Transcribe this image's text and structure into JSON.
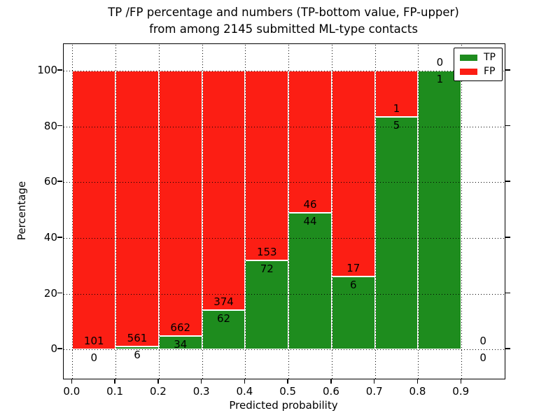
{
  "title": {
    "line1": "TP /FP percentage and numbers (TP-bottom value, FP-upper)",
    "line2": "from among 2145 submitted ML-type contacts"
  },
  "chart_data": {
    "type": "bar",
    "stacked": true,
    "orientation": "vertical",
    "title": "TP /FP percentage and numbers (TP-bottom value, FP-upper) from among 2145 submitted ML-type contacts",
    "xlabel": "Predicted probability",
    "ylabel": "Percentage",
    "xlim": [
      -0.02,
      1.0
    ],
    "ylim": [
      -10.5,
      109.5
    ],
    "xticks": [
      "0.0",
      "0.1",
      "0.2",
      "0.3",
      "0.4",
      "0.5",
      "0.6",
      "0.7",
      "0.8",
      "0.9"
    ],
    "yticks": [
      0,
      20,
      40,
      60,
      80,
      100
    ],
    "grid": "dotted, both axes",
    "legend_position": "upper right",
    "total_submitted": 2145,
    "series_note": "Each 0.1-wide bin is a bar normalized to 100%: TP (green) on bottom, FP (red) on top. Labels are raw counts: FP count just above the TP/FP boundary, TP count just below it. The 0.9-1.0 bin has no contacts so no bar is drawn.",
    "legend": [
      {
        "label": "TP",
        "color": "#1e8c1e"
      },
      {
        "label": "FP",
        "color": "#fc1e14"
      }
    ],
    "bins": [
      {
        "x0": 0.0,
        "x1": 0.1,
        "tp": 0,
        "fp": 101,
        "tp_pct": 0.0
      },
      {
        "x0": 0.1,
        "x1": 0.2,
        "tp": 6,
        "fp": 561,
        "tp_pct": 1.06
      },
      {
        "x0": 0.2,
        "x1": 0.3,
        "tp": 34,
        "fp": 662,
        "tp_pct": 4.89
      },
      {
        "x0": 0.3,
        "x1": 0.4,
        "tp": 62,
        "fp": 374,
        "tp_pct": 14.22
      },
      {
        "x0": 0.4,
        "x1": 0.5,
        "tp": 72,
        "fp": 153,
        "tp_pct": 32.0
      },
      {
        "x0": 0.5,
        "x1": 0.6,
        "tp": 44,
        "fp": 46,
        "tp_pct": 48.89
      },
      {
        "x0": 0.6,
        "x1": 0.7,
        "tp": 6,
        "fp": 17,
        "tp_pct": 26.09
      },
      {
        "x0": 0.7,
        "x1": 0.8,
        "tp": 5,
        "fp": 1,
        "tp_pct": 83.33
      },
      {
        "x0": 0.8,
        "x1": 0.9,
        "tp": 1,
        "fp": 0,
        "tp_pct": 100.0
      },
      {
        "x0": 0.9,
        "x1": 1.0,
        "tp": 0,
        "fp": 0,
        "tp_pct": null
      }
    ]
  },
  "colors": {
    "tp_green": "#1e8c1e",
    "fp_red": "#fc1e14",
    "grid": "#000000",
    "text": "#000000",
    "background": "#ffffff"
  }
}
